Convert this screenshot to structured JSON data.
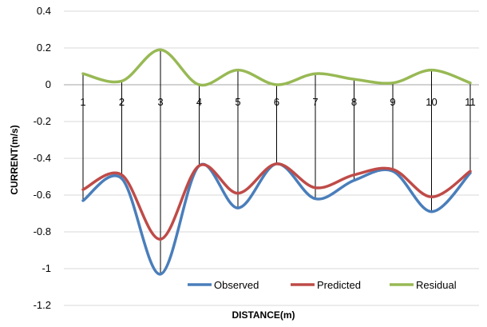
{
  "chart_data": {
    "type": "line",
    "x": [
      1,
      2,
      3,
      4,
      5,
      6,
      7,
      8,
      9,
      10,
      11
    ],
    "series": [
      {
        "name": "Observed",
        "color": "#4a7ebb",
        "values": [
          -0.63,
          -0.51,
          -1.03,
          -0.44,
          -0.67,
          -0.43,
          -0.62,
          -0.52,
          -0.47,
          -0.69,
          -0.48
        ]
      },
      {
        "name": "Predicted",
        "color": "#be4b48",
        "values": [
          -0.57,
          -0.49,
          -0.84,
          -0.44,
          -0.59,
          -0.43,
          -0.56,
          -0.49,
          -0.46,
          -0.61,
          -0.47
        ]
      },
      {
        "name": "Residual",
        "color": "#98b954",
        "values": [
          0.06,
          0.02,
          0.19,
          0.0,
          0.08,
          0.0,
          0.06,
          0.03,
          0.01,
          0.08,
          0.01
        ]
      }
    ],
    "xlabel": "DISTANCE(m)",
    "ylabel": "CURRENT(m/s)",
    "ylim": [
      -1.2,
      0.4
    ],
    "yticks": [
      0.4,
      0.2,
      0,
      -0.2,
      -0.4,
      -0.6,
      -0.8,
      -1,
      -1.2
    ],
    "ytick_labels": [
      "0.4",
      "0.2",
      "0",
      "-0.2",
      "-0.4",
      "-0.6",
      "-0.8",
      "-1",
      "-1.2"
    ],
    "xtick_labels": [
      "1",
      "2",
      "3",
      "4",
      "5",
      "6",
      "7",
      "8",
      "9",
      "10",
      "11"
    ],
    "grid": true,
    "drop_lines": true,
    "smooth": true,
    "legend_position": "bottom-right"
  }
}
